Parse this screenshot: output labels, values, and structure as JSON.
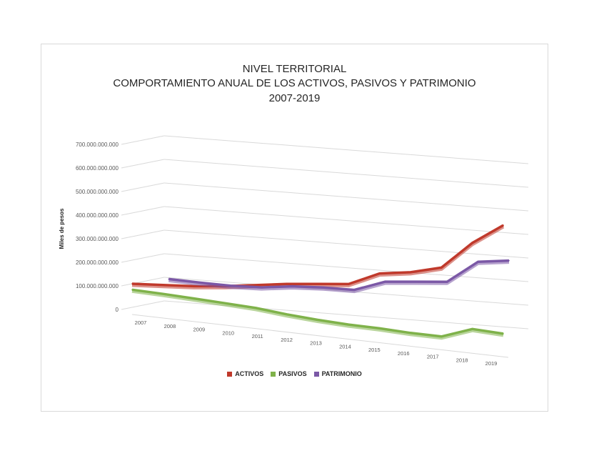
{
  "chart_data": {
    "type": "line",
    "title_lines": [
      "NIVEL TERRITORIAL",
      "COMPORTAMIENTO ANUAL DE LOS ACTIVOS, PASIVOS Y PATRIMONIO",
      "2007-2019"
    ],
    "ylabel": "Miles de pesos",
    "xlabel": "",
    "categories": [
      "2007",
      "2008",
      "2009",
      "2010",
      "2011",
      "2012",
      "2013",
      "2014",
      "2015",
      "2016",
      "2017",
      "2018",
      "2019"
    ],
    "y_ticks": [
      "0",
      "100.000.000.000",
      "200.000.000.000",
      "300.000.000.000",
      "400.000.000.000",
      "500.000.000.000",
      "600.000.000.000",
      "700.000.000.000"
    ],
    "ylim": [
      0,
      700000000000
    ],
    "grid": true,
    "legend_position": "bottom",
    "series": [
      {
        "name": "ACTIVOS",
        "color": "#c0392b",
        "values": [
          100000000000,
          110000000000,
          120000000000,
          135000000000,
          155000000000,
          175000000000,
          190000000000,
          205000000000,
          265000000000,
          285000000000,
          320000000000,
          440000000000,
          530000000000
        ]
      },
      {
        "name": "PASIVOS",
        "color": "#7fb24a",
        "values": [
          75000000000,
          72000000000,
          68000000000,
          63000000000,
          58000000000,
          46000000000,
          38000000000,
          33000000000,
          32000000000,
          28000000000,
          28000000000,
          75000000000,
          70000000000
        ]
      },
      {
        "name": "PATRIMONIO",
        "color": "#7b58a6",
        "values": [
          null,
          135000000000,
          135000000000,
          137000000000,
          145000000000,
          165000000000,
          175000000000,
          180000000000,
          230000000000,
          245000000000,
          260000000000,
          360000000000,
          380000000000
        ]
      }
    ]
  }
}
